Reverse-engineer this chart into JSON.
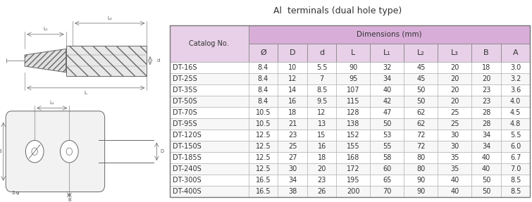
{
  "title": "Al  terminals (dual hole type)",
  "dimensions_header": "Dimensions (mm)",
  "columns": [
    "Catalog No.",
    "Ø",
    "D",
    "d",
    "L",
    "L₁",
    "L₂",
    "L₃",
    "B",
    "A"
  ],
  "rows": [
    [
      "DT-16S",
      "8.4",
      "10",
      "5.5",
      "90",
      "32",
      "45",
      "20",
      "18",
      "3.0"
    ],
    [
      "DT-25S",
      "8.4",
      "12",
      "7",
      "95",
      "34",
      "45",
      "20",
      "20",
      "3.2"
    ],
    [
      "DT-35S",
      "8.4",
      "14",
      "8.5",
      "107",
      "40",
      "50",
      "20",
      "23",
      "3.6"
    ],
    [
      "DT-50S",
      "8.4",
      "16",
      "9.5",
      "115",
      "42",
      "50",
      "20",
      "23",
      "4.0"
    ],
    [
      "DT-70S",
      "10.5",
      "18",
      "12",
      "128",
      "47",
      "62",
      "25",
      "28",
      "4.5"
    ],
    [
      "DT-95S",
      "10.5",
      "21",
      "13",
      "138",
      "50",
      "62",
      "25",
      "28",
      "4.8"
    ],
    [
      "DT-120S",
      "12.5",
      "23",
      "15",
      "152",
      "53",
      "72",
      "30",
      "34",
      "5.5"
    ],
    [
      "DT-150S",
      "12.5",
      "25",
      "16",
      "155",
      "55",
      "72",
      "30",
      "34",
      "6.0"
    ],
    [
      "DT-185S",
      "12.5",
      "27",
      "18",
      "168",
      "58",
      "80",
      "35",
      "40",
      "6.7"
    ],
    [
      "DT-240S",
      "12.5",
      "30",
      "20",
      "172",
      "60",
      "80",
      "35",
      "40",
      "7.0"
    ],
    [
      "DT-300S",
      "16.5",
      "34",
      "23",
      "195",
      "65",
      "90",
      "40",
      "50",
      "8.5"
    ],
    [
      "DT-400S",
      "16.5",
      "38",
      "26",
      "200",
      "70",
      "90",
      "40",
      "50",
      "8.5"
    ]
  ],
  "header_bg": "#d8aed8",
  "subheader_bg": "#e8d0e8",
  "border_color": "#999999",
  "text_color": "#333333",
  "title_color": "#333333",
  "lc": "#666666",
  "diagram_label_color": "#555555"
}
